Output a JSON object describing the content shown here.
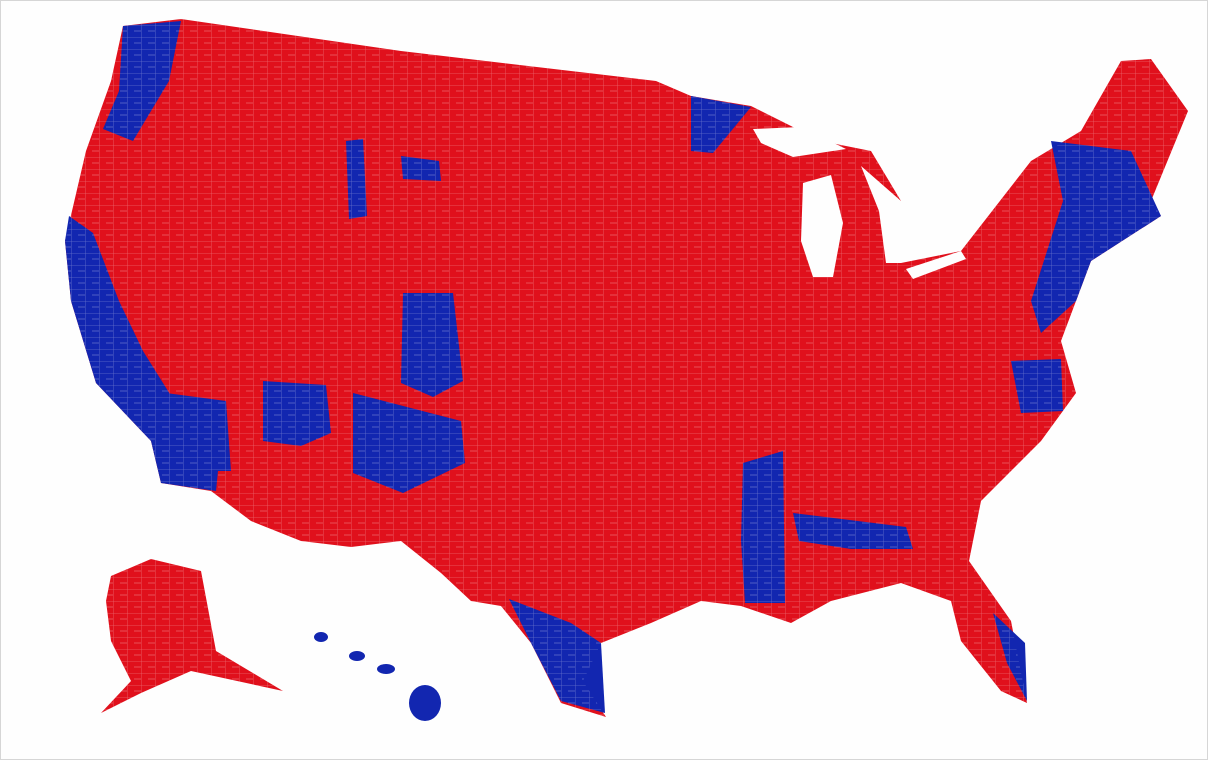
{
  "map": {
    "colors": [
      "#e0101c",
      "#1226b0"
    ]
  }
}
